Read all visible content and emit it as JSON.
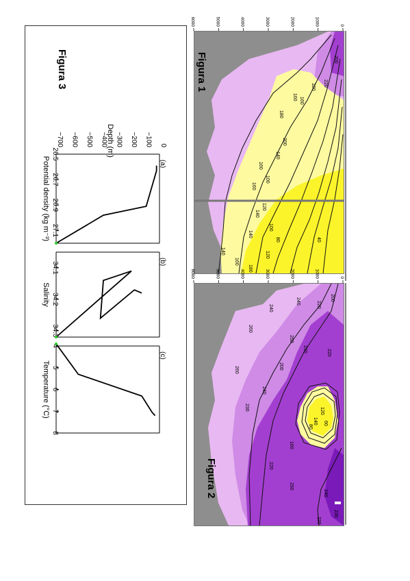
{
  "figures": {
    "figura1_label": "Figura 1",
    "figura2_label": "Figura 2",
    "figura3_label": "Figura 3"
  },
  "colors": {
    "land_gray": "#8e8e8e",
    "yellow_strong": "#fbf42a",
    "yellow_light": "#fdfaa0",
    "lavender": "#e8b8f2",
    "orchid": "#cf8be6",
    "violet": "#a33fd0",
    "deep_purple": "#7a1ab8"
  },
  "chart_data": [
    {
      "type": "heatmap",
      "title": "Figura 1",
      "depth_tick_labels": [
        "0",
        "1000",
        "2000",
        "3000",
        "4000",
        "5000",
        "6000"
      ],
      "contour_labels": [
        "200",
        "220",
        "180",
        "160",
        "160",
        "180",
        "200",
        "160",
        "140",
        "100",
        "160",
        "120",
        "140",
        "100",
        "80",
        "140",
        "120",
        "40",
        "180",
        "160",
        "140"
      ],
      "colors": [
        "#fbf42a",
        "#fdfaa0",
        "#e8b8f2",
        "#cf8be6",
        "#a33fd0",
        "#8e8e8e"
      ]
    },
    {
      "type": "heatmap",
      "title": "Figura 2",
      "depth_tick_labels": [
        "0",
        "1000",
        "2000",
        "3000",
        "4000",
        "5000",
        "6000"
      ],
      "contour_labels": [
        "200",
        "220",
        "240",
        "240",
        "260",
        "250",
        "230",
        "220",
        "200",
        "260",
        "240",
        "230",
        "120",
        "140",
        "80",
        "60",
        "160",
        "220",
        "250",
        "240",
        "230",
        "220"
      ],
      "colors": [
        "#fbf42a",
        "#fdfaa0",
        "#e8b8f2",
        "#cf8be6",
        "#a33fd0",
        "#7a1ab8",
        "#8e8e8e"
      ]
    },
    {
      "type": "line",
      "title": "Figura 3",
      "ylabel": "Depth (m)",
      "ylim": [
        -700,
        0
      ],
      "y_ticks": [
        "0",
        "−100",
        "−200",
        "−300",
        "−400",
        "−500",
        "−600",
        "−700"
      ],
      "panels": [
        {
          "label": "(a)",
          "xlabel": "Potential density (kg m⁻³)",
          "xlim": [
            26.5,
            27.2
          ],
          "x_ticks": [
            "26.5",
            "26.7",
            "26.9",
            "27.1"
          ],
          "x": [
            26.59,
            26.63,
            26.91,
            26.98,
            27.2
          ],
          "y": [
            -20,
            -20,
            -90,
            -380,
            -700
          ]
        },
        {
          "label": "(b)",
          "xlabel": "Salinity",
          "xlim": [
            34.05,
            34.32
          ],
          "x_ticks": [
            "34.1",
            "34.2",
            "34.3"
          ],
          "x": [
            34.18,
            34.17,
            34.26,
            34.14,
            34.11,
            34.32
          ],
          "y": [
            -120,
            -170,
            -400,
            -380,
            -190,
            -700
          ]
        },
        {
          "label": "(c)",
          "xlabel": "Temperature (°C)",
          "xlim": [
            4,
            8
          ],
          "x_ticks": [
            "4",
            "5",
            "6",
            "7",
            "8"
          ],
          "x": [
            7.2,
            7.05,
            6.3,
            5.3,
            3.9
          ],
          "y": [
            -30,
            -50,
            -120,
            -550,
            -700
          ]
        }
      ]
    }
  ]
}
